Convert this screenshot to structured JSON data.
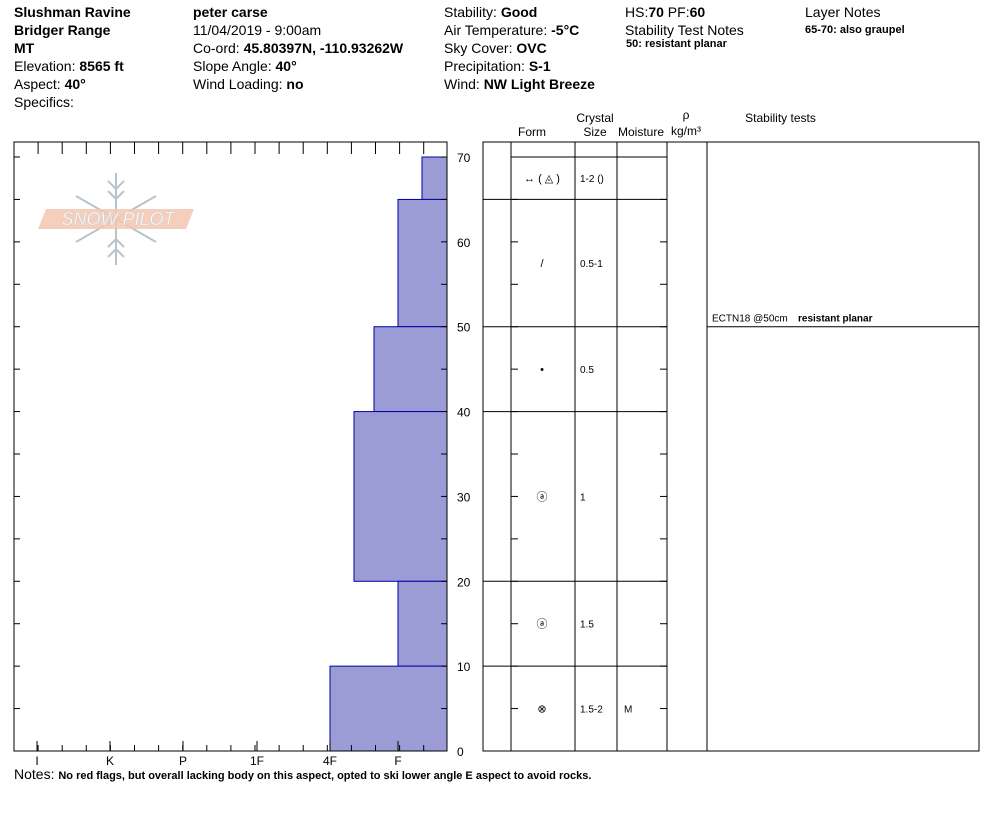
{
  "header": {
    "location": "Slushman Ravine",
    "range": "Bridger Range",
    "state": "MT",
    "elevation_label": "Elevation: ",
    "elevation_value": "8565 ft",
    "aspect_label": "Aspect: ",
    "aspect_value": "40°",
    "specifics_label": "Specifics:",
    "observer": "peter carse",
    "datetime": "11/04/2019 - 9:00am",
    "coord_label": "Co-ord: ",
    "coord_value": "45.80397N, -110.93262W",
    "slope_label": "Slope Angle: ",
    "slope_value": "40°",
    "wind_loading_label": "Wind Loading: ",
    "wind_loading_value": "no",
    "stability_label": "Stability: ",
    "stability_value": "Good",
    "air_temp_label": "Air Temperature: ",
    "air_temp_value": "-5°C",
    "sky_label": "Sky Cover: ",
    "sky_value": "OVC",
    "precip_label": "Precipitation: ",
    "precip_value": "S-1",
    "wind_label": "Wind:  ",
    "wind_value": "NW Light Breeze",
    "hs_label": "HS:",
    "hs_value": "70",
    "pf_label": " PF:",
    "pf_value": "60",
    "stability_notes_title": "Stability Test Notes",
    "stability_notes_item": "50: resistant planar",
    "layer_notes_title": "Layer Notes",
    "layer_notes_item": "65-70: also graupel"
  },
  "columns": {
    "crystal": "Crystal",
    "form": "Form",
    "size": "Size",
    "moisture": "Moisture",
    "rho": "ρ",
    "density_unit": "kg/m³",
    "stability_tests": "Stability tests"
  },
  "logo_text": "SNOW PILOT",
  "notes_label": "Notes: ",
  "notes_text": "No red flags, but overall lacking body on this aspect, opted to ski lower angle E aspect to avoid rocks.",
  "colors": {
    "hardness_fill": "#9b9bd6",
    "hardness_stroke": "#0000aa",
    "logo": "#f4c6b0"
  },
  "chart_data": {
    "type": "bar",
    "orientation": "horizontal",
    "title": "",
    "y_axis": {
      "range": [
        0,
        70
      ],
      "ticks": [
        0,
        10,
        20,
        30,
        40,
        50,
        60,
        70
      ]
    },
    "hardness_scale": [
      "I",
      "K",
      "P",
      "1F",
      "4F",
      "F"
    ],
    "layers": [
      {
        "bottom": 65,
        "top": 70,
        "hardness": "F-",
        "form": "↔ ( ◬ )",
        "size": "1-2 ()"
      },
      {
        "bottom": 50,
        "top": 65,
        "hardness": "F",
        "form": "/",
        "size": "0.5-1"
      },
      {
        "bottom": 40,
        "top": 50,
        "hardness": "F+",
        "form": "•",
        "size": "0.5"
      },
      {
        "bottom": 20,
        "top": 40,
        "hardness": "4F-",
        "form": "ⓐ",
        "size": "1"
      },
      {
        "bottom": 10,
        "top": 20,
        "hardness": "F",
        "form": "ⓐ",
        "size": "1.5"
      },
      {
        "bottom": 0,
        "top": 10,
        "hardness": "4F",
        "form": "⊗",
        "size": "1.5-2",
        "moisture": "M"
      }
    ],
    "stability_tests": [
      {
        "depth": 50,
        "test": "ECTN18 @50cm",
        "result": "resistant planar"
      }
    ]
  }
}
